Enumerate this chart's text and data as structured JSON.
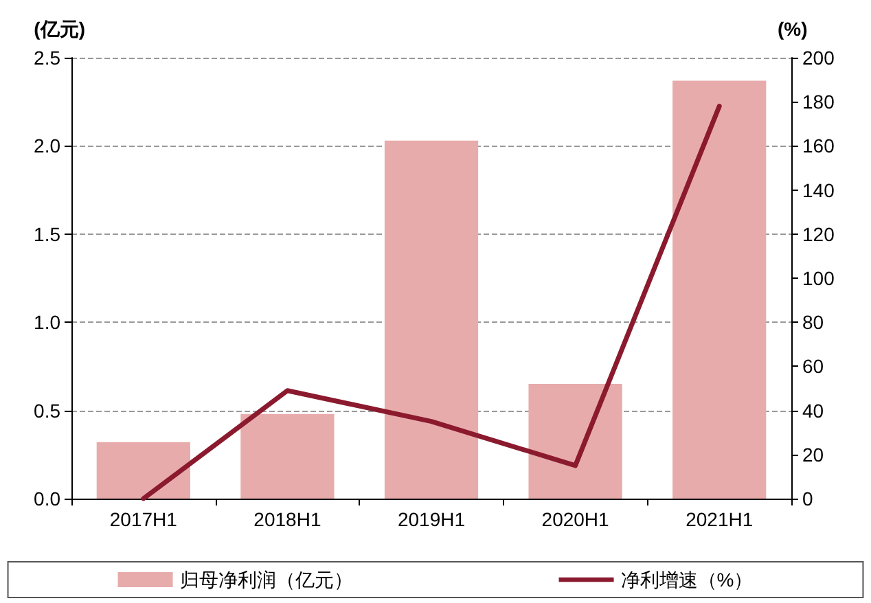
{
  "chart_data": {
    "type": "bar",
    "ylabel": "(亿元)",
    "y2label": "(%)",
    "categories": [
      "2017H1",
      "2018H1",
      "2019H1",
      "2020H1",
      "2021H1"
    ],
    "series": [
      {
        "name": "归母净利润（亿元）",
        "color": "#e8abab",
        "values": [
          0.32,
          0.48,
          2.03,
          0.65,
          2.37
        ]
      },
      {
        "name": "净利增速（%）",
        "type": "line",
        "axis": "y2",
        "color": "#8b1a2e",
        "values": [
          0,
          49,
          35,
          15,
          178
        ]
      }
    ],
    "ylim": [
      0,
      2.5
    ],
    "yticks": [
      {
        "value": 0,
        "label": "0.0"
      },
      0.5,
      {
        "value": 1,
        "label": "1.0"
      },
      1.5,
      {
        "value": 2,
        "label": "2.0"
      },
      2.5
    ],
    "y2lim": [
      0,
      200
    ],
    "y2ticks": [
      0,
      20,
      40,
      60,
      80,
      100,
      120,
      140,
      160,
      180,
      200
    ],
    "grid": "y",
    "legend": "bottom",
    "marker": "none",
    "line_style": "solid"
  }
}
